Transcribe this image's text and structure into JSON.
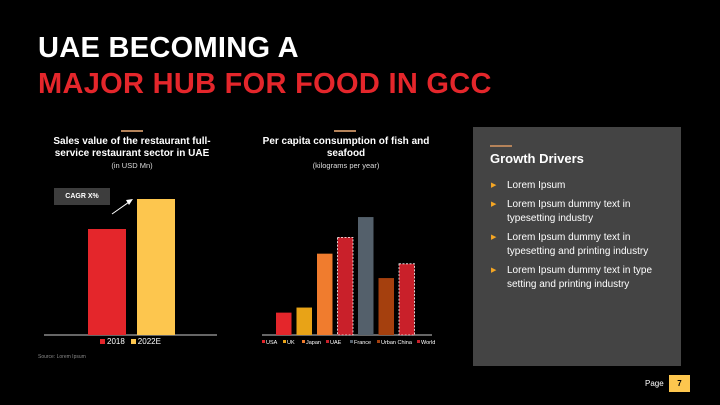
{
  "header": {
    "title_line1": "UAE BECOMING A",
    "title_line2": "MAJOR HUB FOR FOOD IN GCC"
  },
  "chart_data": [
    {
      "type": "bar",
      "title": "Sales value of the restaurant full-service restaurant sector in UAE",
      "subtitle": "(in USD Mn)",
      "categories": [
        "2018",
        "2022E"
      ],
      "values": [
        53,
        68
      ],
      "ylim": [
        0,
        70
      ],
      "colors": [
        "#e4262b",
        "#fdc64e"
      ],
      "annotation": "CAGR X%",
      "legend": [
        "2018",
        "2022E"
      ],
      "legend_position": "bottom",
      "grid": false
    },
    {
      "type": "bar",
      "title": "Per capita consumption of fish and seafood",
      "subtitle": "(kilograms per year)",
      "categories": [
        "USA",
        "UK",
        "Japan",
        "UAE",
        "France",
        "Urban China",
        "World"
      ],
      "values": [
        11,
        13.5,
        40,
        48,
        58,
        28,
        35
      ],
      "ylim": [
        0,
        60
      ],
      "colors": [
        "#e4262b",
        "#e8a317",
        "#f07c2e",
        "#c9202a",
        "#54606b",
        "#a5400e",
        "#c9202a"
      ],
      "dashed": [
        false,
        false,
        false,
        true,
        false,
        false,
        true
      ],
      "legend_position": "bottom",
      "grid": false
    }
  ],
  "chart1_legend": [
    {
      "label": "2018",
      "color": "#e4262b"
    },
    {
      "label": "2022E",
      "color": "#fdc64e"
    }
  ],
  "source": "Source: Lorem Ipsum",
  "panel": {
    "title": "Growth Drivers",
    "items": [
      "Lorem Ipsum",
      "Lorem Ipsum dummy text in typesetting industry",
      "Lorem Ipsum dummy text in typesetting and printing industry",
      "Lorem Ipsum dummy text in type setting and printing industry"
    ]
  },
  "footer": {
    "page_label": "Page",
    "page_number": "7"
  }
}
